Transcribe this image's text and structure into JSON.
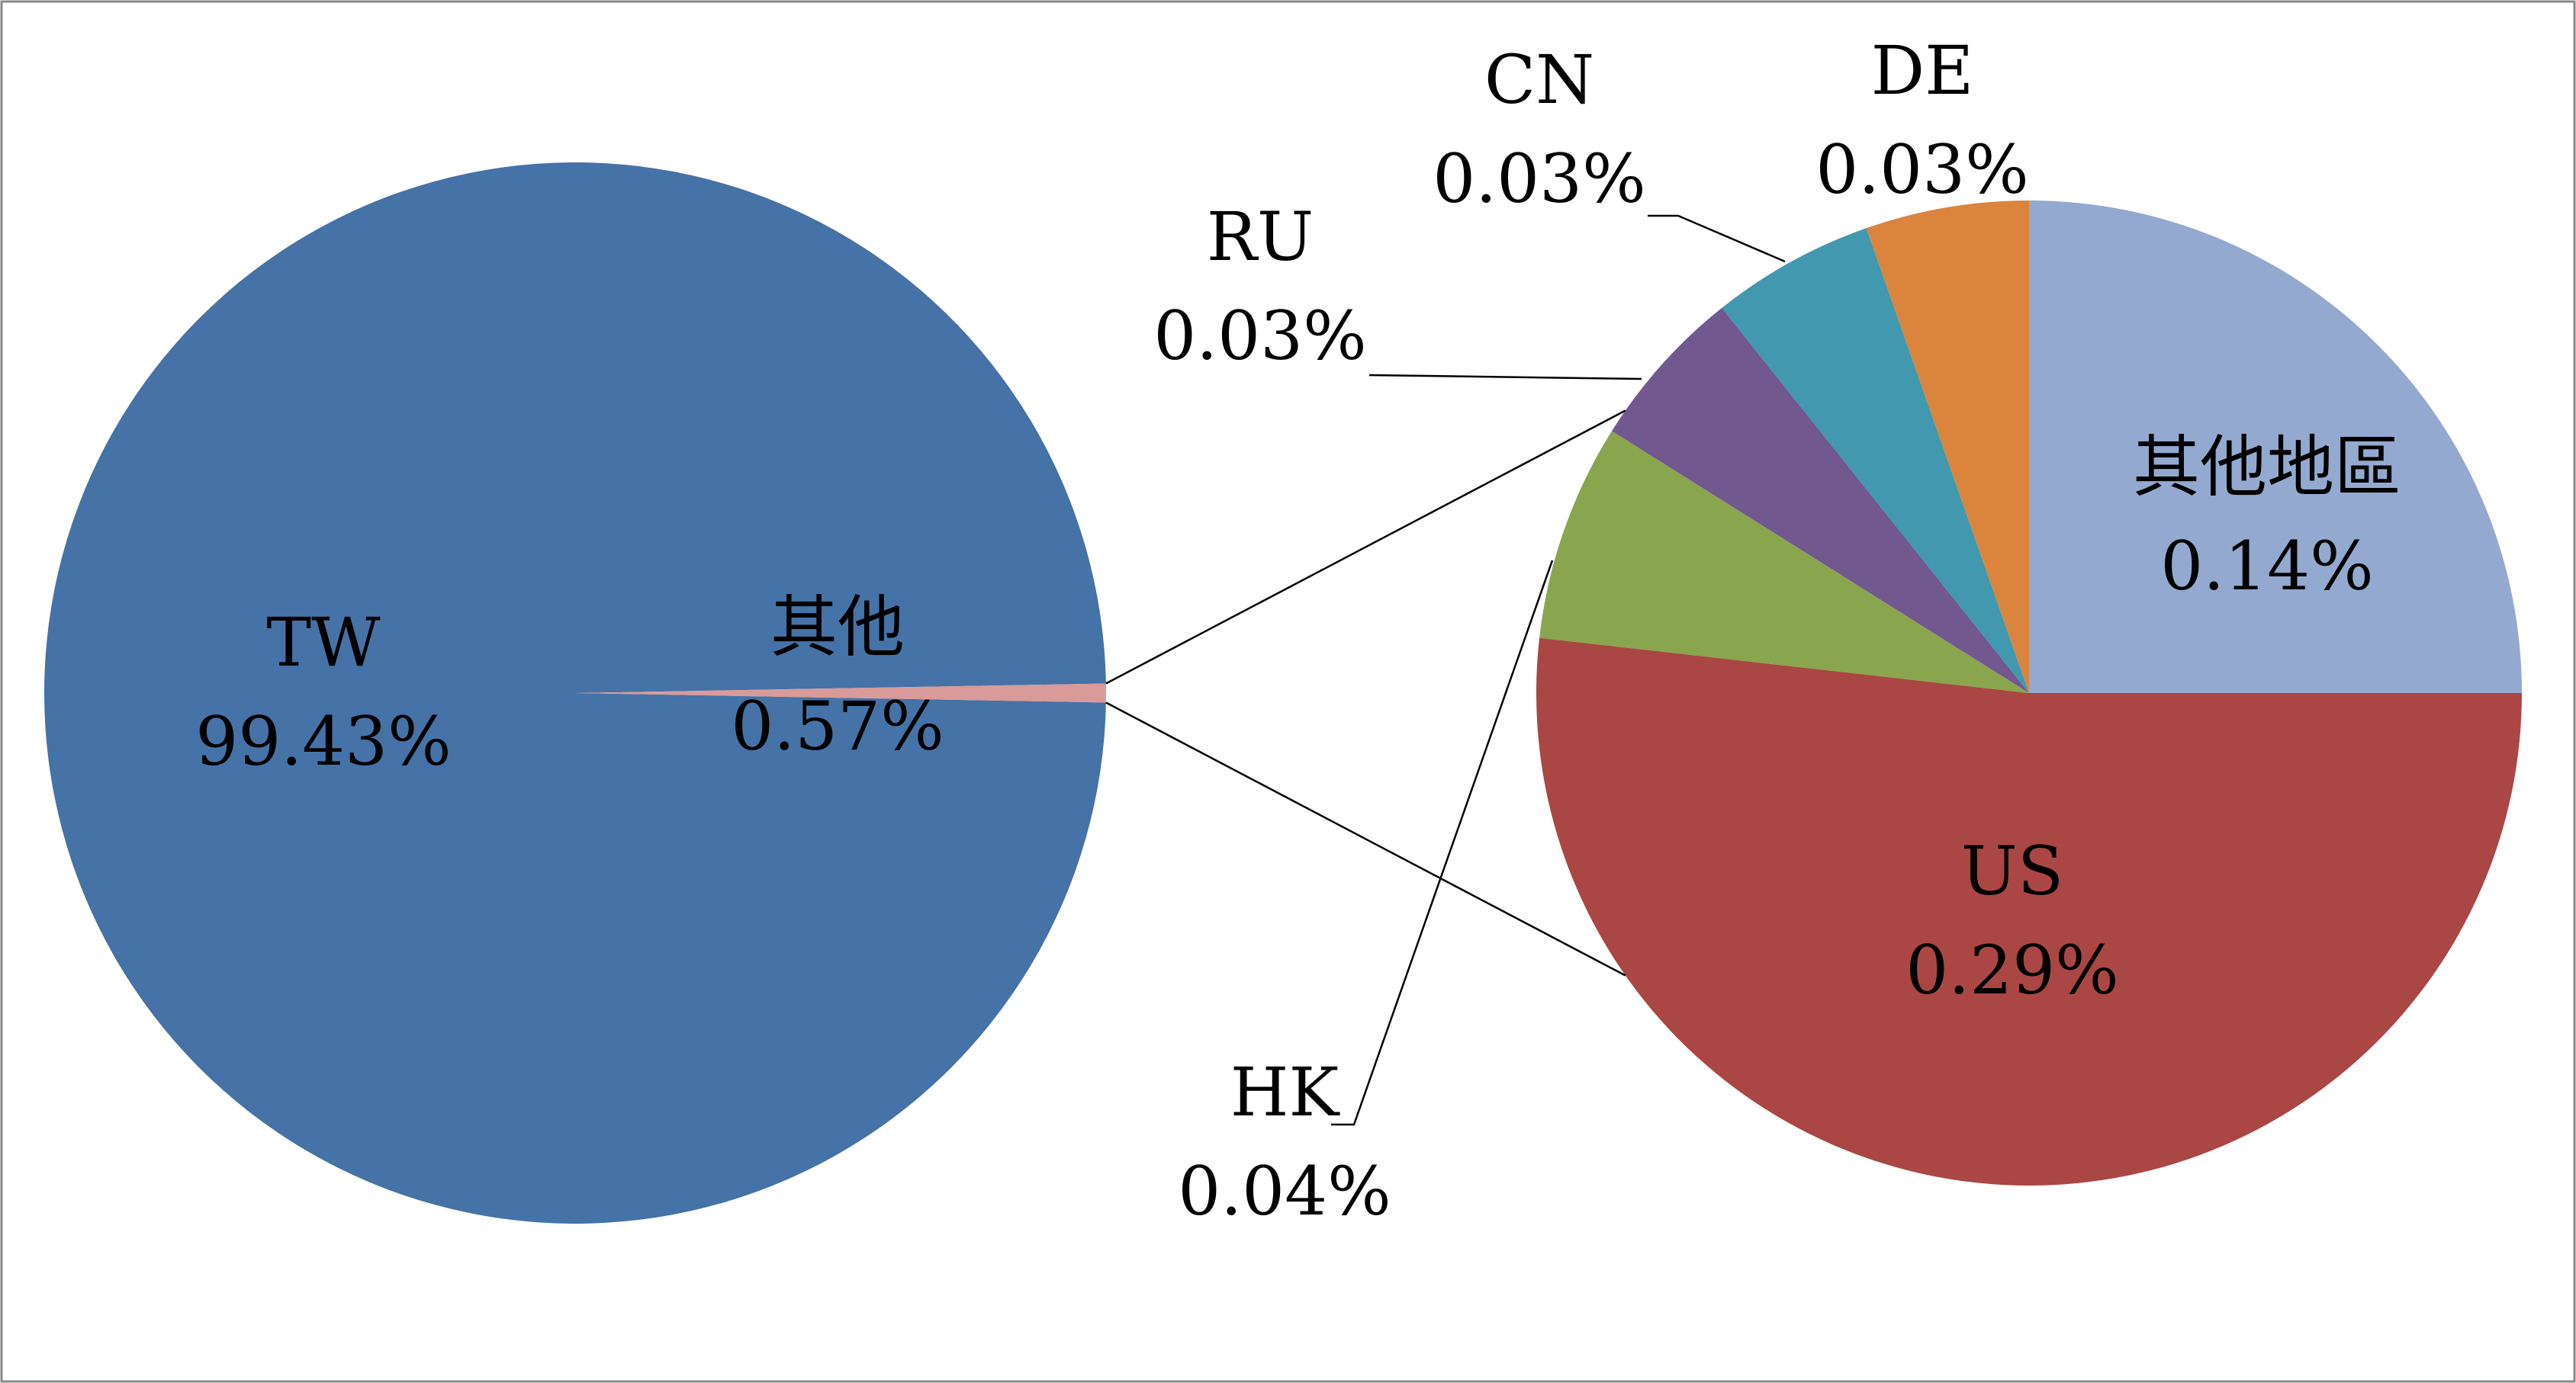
{
  "chart_data": [
    {
      "type": "pie",
      "labels": [
        "TW",
        "其他"
      ],
      "values": [
        99.43,
        0.57
      ],
      "value_labels": [
        "99.43%",
        "0.57%"
      ],
      "colors": [
        "#4572a7",
        "#d99a99"
      ]
    },
    {
      "type": "pie",
      "labels": [
        "其他地區",
        "US",
        "HK",
        "RU",
        "CN",
        "DE"
      ],
      "values": [
        0.14,
        0.29,
        0.04,
        0.03,
        0.03,
        0.03
      ],
      "value_labels": [
        "0.14%",
        "0.29%",
        "0.04%",
        "0.03%",
        "0.03%",
        "0.03%"
      ],
      "colors": [
        "#93a9cf",
        "#aa4644",
        "#89a54e",
        "#71588f",
        "#4198af",
        "#db843d"
      ]
    }
  ]
}
